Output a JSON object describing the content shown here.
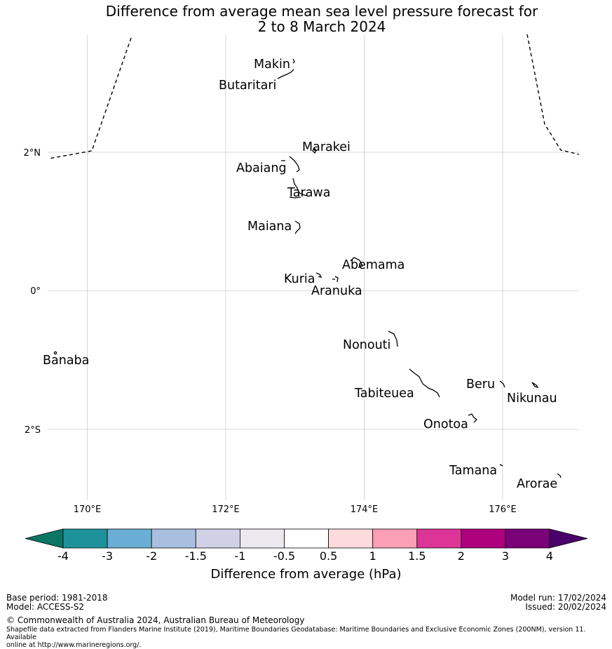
{
  "title_line1": "Difference from average mean sea level pressure forecast for",
  "title_line2": "2 to 8 March 2024",
  "map": {
    "lon_labels": [
      "170°E",
      "172°E",
      "174°E",
      "176°E"
    ],
    "lat_labels": [
      "2°N",
      "0°",
      "2°S"
    ],
    "places": [
      {
        "name": "Makin"
      },
      {
        "name": "Butaritari"
      },
      {
        "name": "Marakei"
      },
      {
        "name": "Abaiang"
      },
      {
        "name": "Tarawa"
      },
      {
        "name": "Maiana"
      },
      {
        "name": "Abemama"
      },
      {
        "name": "Kuria"
      },
      {
        "name": "Aranuka"
      },
      {
        "name": "Nonouti"
      },
      {
        "name": "Banaba"
      },
      {
        "name": "Beru"
      },
      {
        "name": "Tabiteuea"
      },
      {
        "name": "Nikunau"
      },
      {
        "name": "Onotoa"
      },
      {
        "name": "Tamana"
      },
      {
        "name": "Arorae"
      }
    ]
  },
  "colorbar": {
    "colors": [
      "#0d7563",
      "#1e929a",
      "#6aaed6",
      "#a8bfe0",
      "#d0d1e6",
      "#ebe9ee",
      "#ffffff",
      "#fddbdd",
      "#fa9fb5",
      "#dd3497",
      "#ae017e",
      "#7a0177",
      "#49006a"
    ],
    "ticks": [
      "-4",
      "-3",
      "-2",
      "-1.5",
      "-1",
      "-0.5",
      "0.5",
      "1",
      "1.5",
      "2",
      "3",
      "4"
    ],
    "label": "Difference from average (hPa)"
  },
  "footer": {
    "base_period": "Base period: 1981-2018",
    "model": "Model: ACCESS-S2",
    "model_run": "Model run: 17/02/2024",
    "issued": "Issued: 20/02/2024",
    "copyright": "© Commonwealth of Australia 2024, Australian Bureau of Meteorology",
    "shapefile_line1": "Shapefile data extracted from Flanders Marine Institute (2019), Maritime Boundaries Geodatabase: Maritime Boundaries and Exclusive Economic Zones (200NM), version 11. Available",
    "shapefile_line2": "online at http://www.marineregions.org/."
  }
}
